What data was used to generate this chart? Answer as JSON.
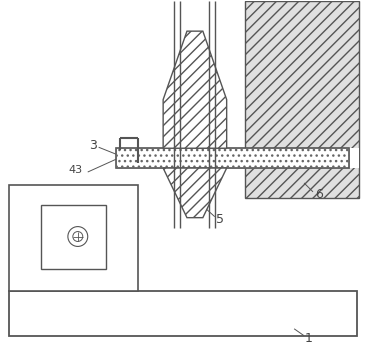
{
  "line_color": "#555555",
  "label_color": "#444444",
  "hatch_lw": 0.4,
  "main_lw": 1.0,
  "fig_w": 3.65,
  "fig_h": 3.51,
  "dpi": 100
}
